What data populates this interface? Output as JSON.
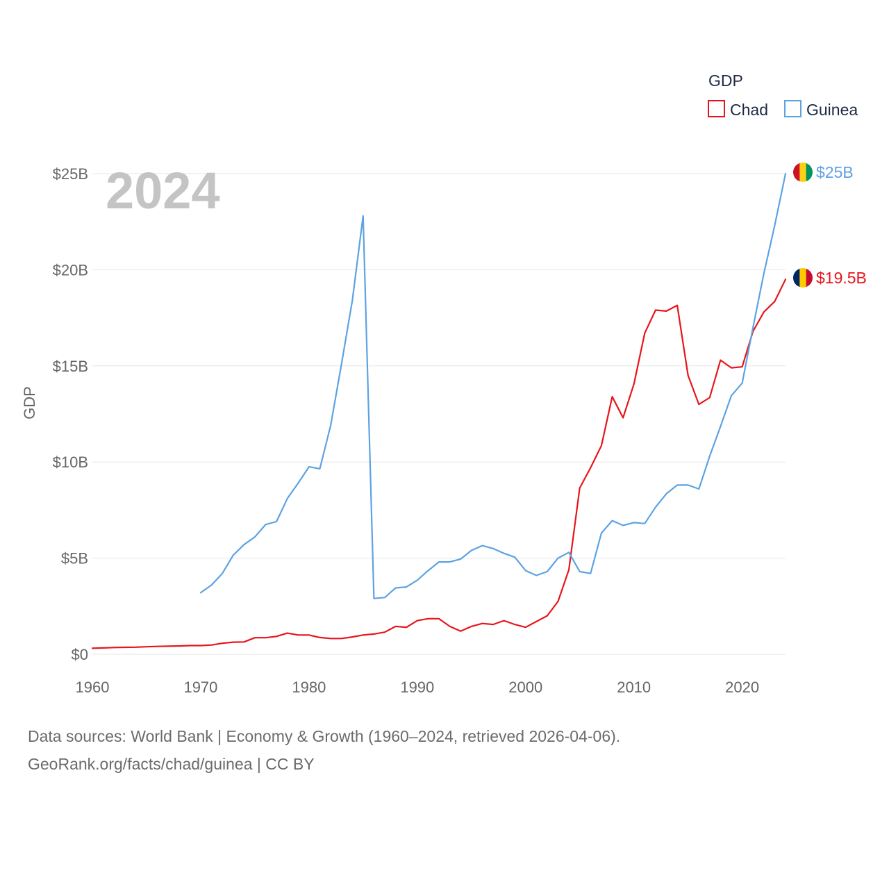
{
  "chart_data": {
    "type": "line",
    "year_label": "2024",
    "ylabel": "GDP",
    "ylim": [
      0,
      25
    ],
    "xlim": [
      1960,
      2024
    ],
    "yticks": [
      {
        "value": 0,
        "label": "$0"
      },
      {
        "value": 5,
        "label": "$5B"
      },
      {
        "value": 10,
        "label": "$10B"
      },
      {
        "value": 15,
        "label": "$15B"
      },
      {
        "value": 20,
        "label": "$20B"
      },
      {
        "value": 25,
        "label": "$25B"
      }
    ],
    "xticks": [
      {
        "value": 1960,
        "label": "1960"
      },
      {
        "value": 1970,
        "label": "1970"
      },
      {
        "value": 1980,
        "label": "1980"
      },
      {
        "value": 1990,
        "label": "1990"
      },
      {
        "value": 2000,
        "label": "2000"
      },
      {
        "value": 2010,
        "label": "2010"
      },
      {
        "value": 2020,
        "label": "2020"
      }
    ],
    "legend": {
      "title": "GDP",
      "position": "top-right"
    },
    "series": [
      {
        "name": "Chad",
        "color": "#e8141c",
        "end_label": "$19.5B",
        "flag_colors": [
          "#002664",
          "#fecb00",
          "#c60c30"
        ],
        "x": [
          1960,
          1961,
          1962,
          1963,
          1964,
          1965,
          1966,
          1967,
          1968,
          1969,
          1970,
          1971,
          1972,
          1973,
          1974,
          1975,
          1976,
          1977,
          1978,
          1979,
          1980,
          1981,
          1982,
          1983,
          1984,
          1985,
          1986,
          1987,
          1988,
          1989,
          1990,
          1991,
          1992,
          1993,
          1994,
          1995,
          1996,
          1997,
          1998,
          1999,
          2000,
          2001,
          2002,
          2003,
          2004,
          2005,
          2006,
          2007,
          2008,
          2009,
          2010,
          2011,
          2012,
          2013,
          2014,
          2015,
          2016,
          2017,
          2018,
          2019,
          2020,
          2021,
          2022,
          2023,
          2024
        ],
        "values": [
          0.31,
          0.33,
          0.35,
          0.36,
          0.37,
          0.39,
          0.41,
          0.42,
          0.43,
          0.45,
          0.45,
          0.48,
          0.57,
          0.63,
          0.64,
          0.86,
          0.86,
          0.93,
          1.1,
          1.0,
          1.0,
          0.87,
          0.82,
          0.82,
          0.9,
          1.0,
          1.05,
          1.15,
          1.45,
          1.4,
          1.75,
          1.85,
          1.85,
          1.45,
          1.2,
          1.45,
          1.6,
          1.55,
          1.75,
          1.55,
          1.4,
          1.7,
          2.0,
          2.75,
          4.4,
          8.65,
          9.7,
          10.85,
          13.4,
          12.3,
          14.05,
          16.7,
          17.9,
          17.85,
          18.15,
          14.5,
          13.0,
          13.35,
          15.3,
          14.9,
          14.95,
          16.8,
          17.8,
          18.35,
          19.5
        ]
      },
      {
        "name": "Guinea",
        "color": "#5da2e3",
        "end_label": "$25B",
        "flag_colors": [
          "#ce1126",
          "#fcd116",
          "#009460"
        ],
        "x": [
          1970,
          1971,
          1972,
          1973,
          1974,
          1975,
          1976,
          1977,
          1978,
          1979,
          1980,
          1981,
          1982,
          1983,
          1984,
          1985,
          1986,
          1987,
          1988,
          1989,
          1990,
          1991,
          1992,
          1993,
          1994,
          1995,
          1996,
          1997,
          1998,
          1999,
          2000,
          2001,
          2002,
          2003,
          2004,
          2005,
          2006,
          2007,
          2008,
          2009,
          2010,
          2011,
          2012,
          2013,
          2014,
          2015,
          2016,
          2017,
          2018,
          2019,
          2020,
          2021,
          2022,
          2023,
          2024
        ],
        "values": [
          3.2,
          3.6,
          4.2,
          5.15,
          5.7,
          6.1,
          6.75,
          6.9,
          8.1,
          8.9,
          9.75,
          9.65,
          11.9,
          15.1,
          18.4,
          22.8,
          2.9,
          2.95,
          3.45,
          3.5,
          3.85,
          4.35,
          4.8,
          4.8,
          4.95,
          5.4,
          5.65,
          5.5,
          5.25,
          5.05,
          4.35,
          4.1,
          4.3,
          5.0,
          5.3,
          4.3,
          4.2,
          6.3,
          6.95,
          6.7,
          6.85,
          6.8,
          7.65,
          8.35,
          8.8,
          8.8,
          8.6,
          10.3,
          11.85,
          13.45,
          14.1,
          17.0,
          19.8,
          22.3,
          25.0
        ]
      }
    ]
  },
  "footer": {
    "line1": "Data sources: World Bank | Economy & Growth (1960–2024, retrieved 2026-04-06).",
    "line2": "GeoRank.org/facts/chad/guinea | CC BY"
  }
}
